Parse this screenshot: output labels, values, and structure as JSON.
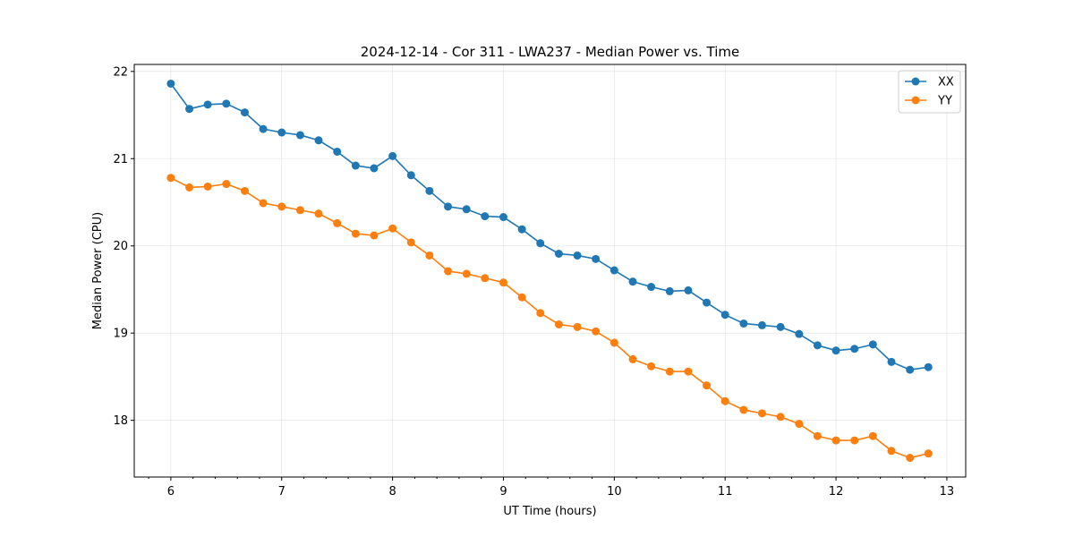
{
  "chart_data": {
    "type": "line",
    "title": "2024-12-14 - Cor 311 - LWA237 - Median Power vs. Time",
    "xlabel": "UT Time (hours)",
    "ylabel": "Median Power (CPU)",
    "xlim": [
      5.67,
      13.17
    ],
    "ylim": [
      17.35,
      22.08
    ],
    "xticks": [
      6,
      7,
      8,
      9,
      10,
      11,
      12,
      13
    ],
    "xtick_labels": [
      "6",
      "7",
      "8",
      "9",
      "10",
      "11",
      "12",
      "13"
    ],
    "yticks": [
      18,
      19,
      20,
      21,
      22
    ],
    "ytick_labels": [
      "18",
      "19",
      "20",
      "21",
      "22"
    ],
    "grid": true,
    "legend_position": "top-right",
    "x": [
      6.0,
      6.167,
      6.333,
      6.5,
      6.667,
      6.833,
      7.0,
      7.167,
      7.333,
      7.5,
      7.667,
      7.833,
      8.0,
      8.167,
      8.333,
      8.5,
      8.667,
      8.833,
      9.0,
      9.167,
      9.333,
      9.5,
      9.667,
      9.833,
      10.0,
      10.167,
      10.333,
      10.5,
      10.667,
      10.833,
      11.0,
      11.167,
      11.333,
      11.5,
      11.667,
      11.833,
      12.0,
      12.167,
      12.333,
      12.5,
      12.667,
      12.833
    ],
    "series": [
      {
        "name": "XX",
        "color": "#1f77b4",
        "values": [
          21.86,
          21.57,
          21.62,
          21.63,
          21.53,
          21.34,
          21.3,
          21.27,
          21.21,
          21.08,
          20.92,
          20.89,
          21.03,
          20.81,
          20.63,
          20.45,
          20.42,
          20.34,
          20.33,
          20.19,
          20.03,
          19.91,
          19.89,
          19.85,
          19.72,
          19.59,
          19.53,
          19.48,
          19.49,
          19.35,
          19.21,
          19.11,
          19.09,
          19.07,
          18.99,
          18.86,
          18.8,
          18.82,
          18.87,
          18.67,
          18.58,
          18.61
        ]
      },
      {
        "name": "YY",
        "color": "#ff7f0e",
        "values": [
          20.78,
          20.67,
          20.68,
          20.71,
          20.63,
          20.49,
          20.45,
          20.41,
          20.37,
          20.26,
          20.14,
          20.12,
          20.2,
          20.04,
          19.89,
          19.71,
          19.68,
          19.63,
          19.58,
          19.41,
          19.23,
          19.1,
          19.07,
          19.02,
          18.89,
          18.7,
          18.62,
          18.56,
          18.56,
          18.4,
          18.22,
          18.12,
          18.08,
          18.04,
          17.96,
          17.82,
          17.77,
          17.77,
          17.82,
          17.65,
          17.57,
          17.62
        ]
      }
    ]
  }
}
